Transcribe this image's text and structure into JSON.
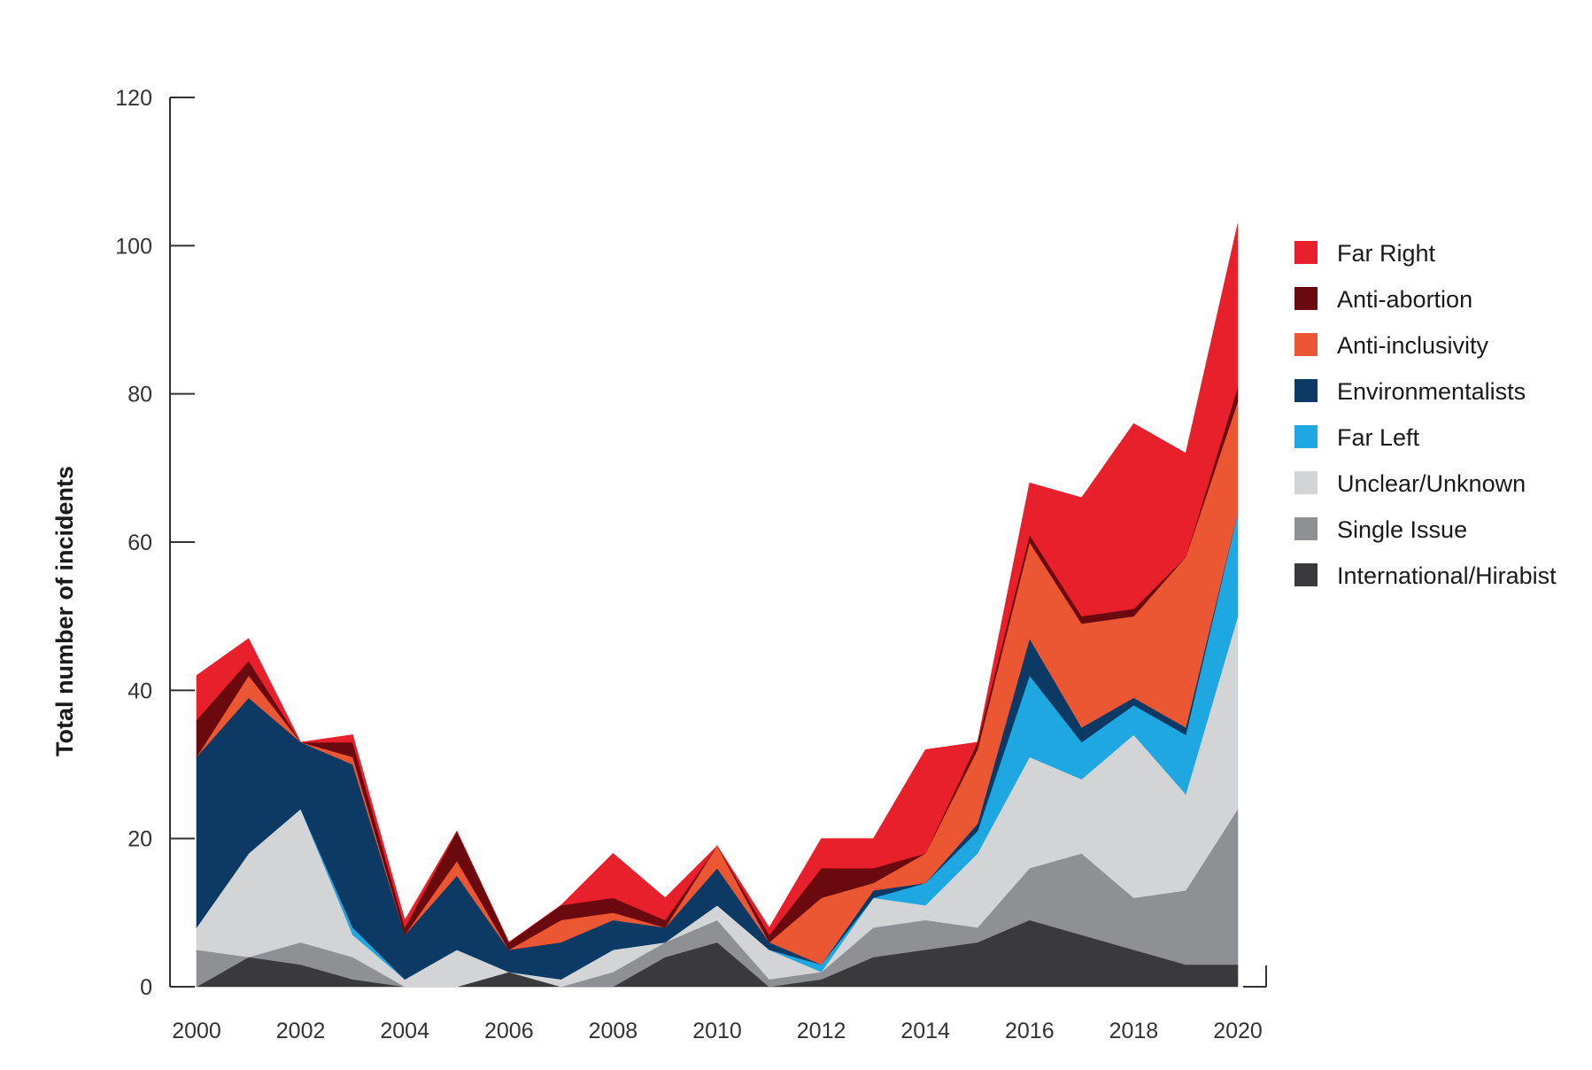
{
  "chart_data": {
    "type": "area",
    "stacked": true,
    "title": "",
    "xlabel": "",
    "ylabel": "Total number of incidents",
    "ylim": [
      0,
      120
    ],
    "xlim": [
      2000,
      2020
    ],
    "y_ticks": [
      0,
      20,
      40,
      60,
      80,
      100,
      120
    ],
    "x_ticks": [
      2000,
      2002,
      2004,
      2006,
      2008,
      2010,
      2012,
      2014,
      2016,
      2018,
      2020
    ],
    "legend_position": "right",
    "x": [
      2000,
      2001,
      2002,
      2003,
      2004,
      2005,
      2006,
      2007,
      2008,
      2009,
      2010,
      2011,
      2012,
      2013,
      2014,
      2015,
      2016,
      2017,
      2018,
      2019,
      2020
    ],
    "series": [
      {
        "name": "International/Hirabist",
        "color": "#3a3a3c",
        "values": [
          0,
          4,
          3,
          1,
          0,
          0,
          2,
          0,
          0,
          4,
          6,
          0,
          1,
          4,
          5,
          6,
          9,
          7,
          5,
          3,
          3
        ]
      },
      {
        "name": "Single Issue",
        "color": "#8f9094",
        "values": [
          5,
          0,
          3,
          3,
          0,
          0,
          0,
          0,
          2,
          2,
          3,
          1,
          1,
          4,
          4,
          2,
          7,
          11,
          7,
          10,
          21
        ]
      },
      {
        "name": "Unclear/Unknown",
        "color": "#d3d4d6",
        "values": [
          3,
          14,
          18,
          3,
          1,
          5,
          0,
          1,
          3,
          0,
          2,
          4,
          0,
          4,
          2,
          10,
          15,
          10,
          22,
          13,
          26
        ]
      },
      {
        "name": "Far Left",
        "color": "#1ea7e1",
        "values": [
          0,
          0,
          0,
          1,
          0,
          0,
          0,
          0,
          0,
          0,
          0,
          0,
          1,
          0,
          3,
          3,
          11,
          5,
          4,
          8,
          14
        ]
      },
      {
        "name": "Environmentalists",
        "color": "#0c3a64",
        "values": [
          23,
          21,
          9,
          22,
          6,
          10,
          3,
          5,
          4,
          2,
          5,
          1,
          0,
          1,
          0,
          1,
          5,
          2,
          1,
          1,
          0
        ]
      },
      {
        "name": "Anti-inclusivity",
        "color": "#ec5733",
        "values": [
          0,
          3,
          0,
          1,
          0,
          2,
          0,
          3,
          1,
          0,
          3,
          0,
          9,
          1,
          4,
          10,
          13,
          14,
          11,
          23,
          15
        ]
      },
      {
        "name": "Anti-abortion",
        "color": "#6b0a0e",
        "values": [
          5,
          2,
          0,
          2,
          1,
          4,
          1,
          2,
          2,
          1,
          0,
          1,
          4,
          2,
          0,
          1,
          1,
          1,
          1,
          0,
          2
        ]
      },
      {
        "name": "Far Right",
        "color": "#e8202b",
        "values": [
          6,
          3,
          0,
          1,
          1,
          0,
          0,
          0,
          6,
          3,
          0,
          1,
          4,
          4,
          14,
          0,
          7,
          16,
          25,
          14,
          22
        ]
      }
    ],
    "legend_order": [
      "Far Right",
      "Anti-abortion",
      "Anti-inclusivity",
      "Environmentalists",
      "Far Left",
      "Unclear/Unknown",
      "Single Issue",
      "International/Hirabist"
    ]
  }
}
